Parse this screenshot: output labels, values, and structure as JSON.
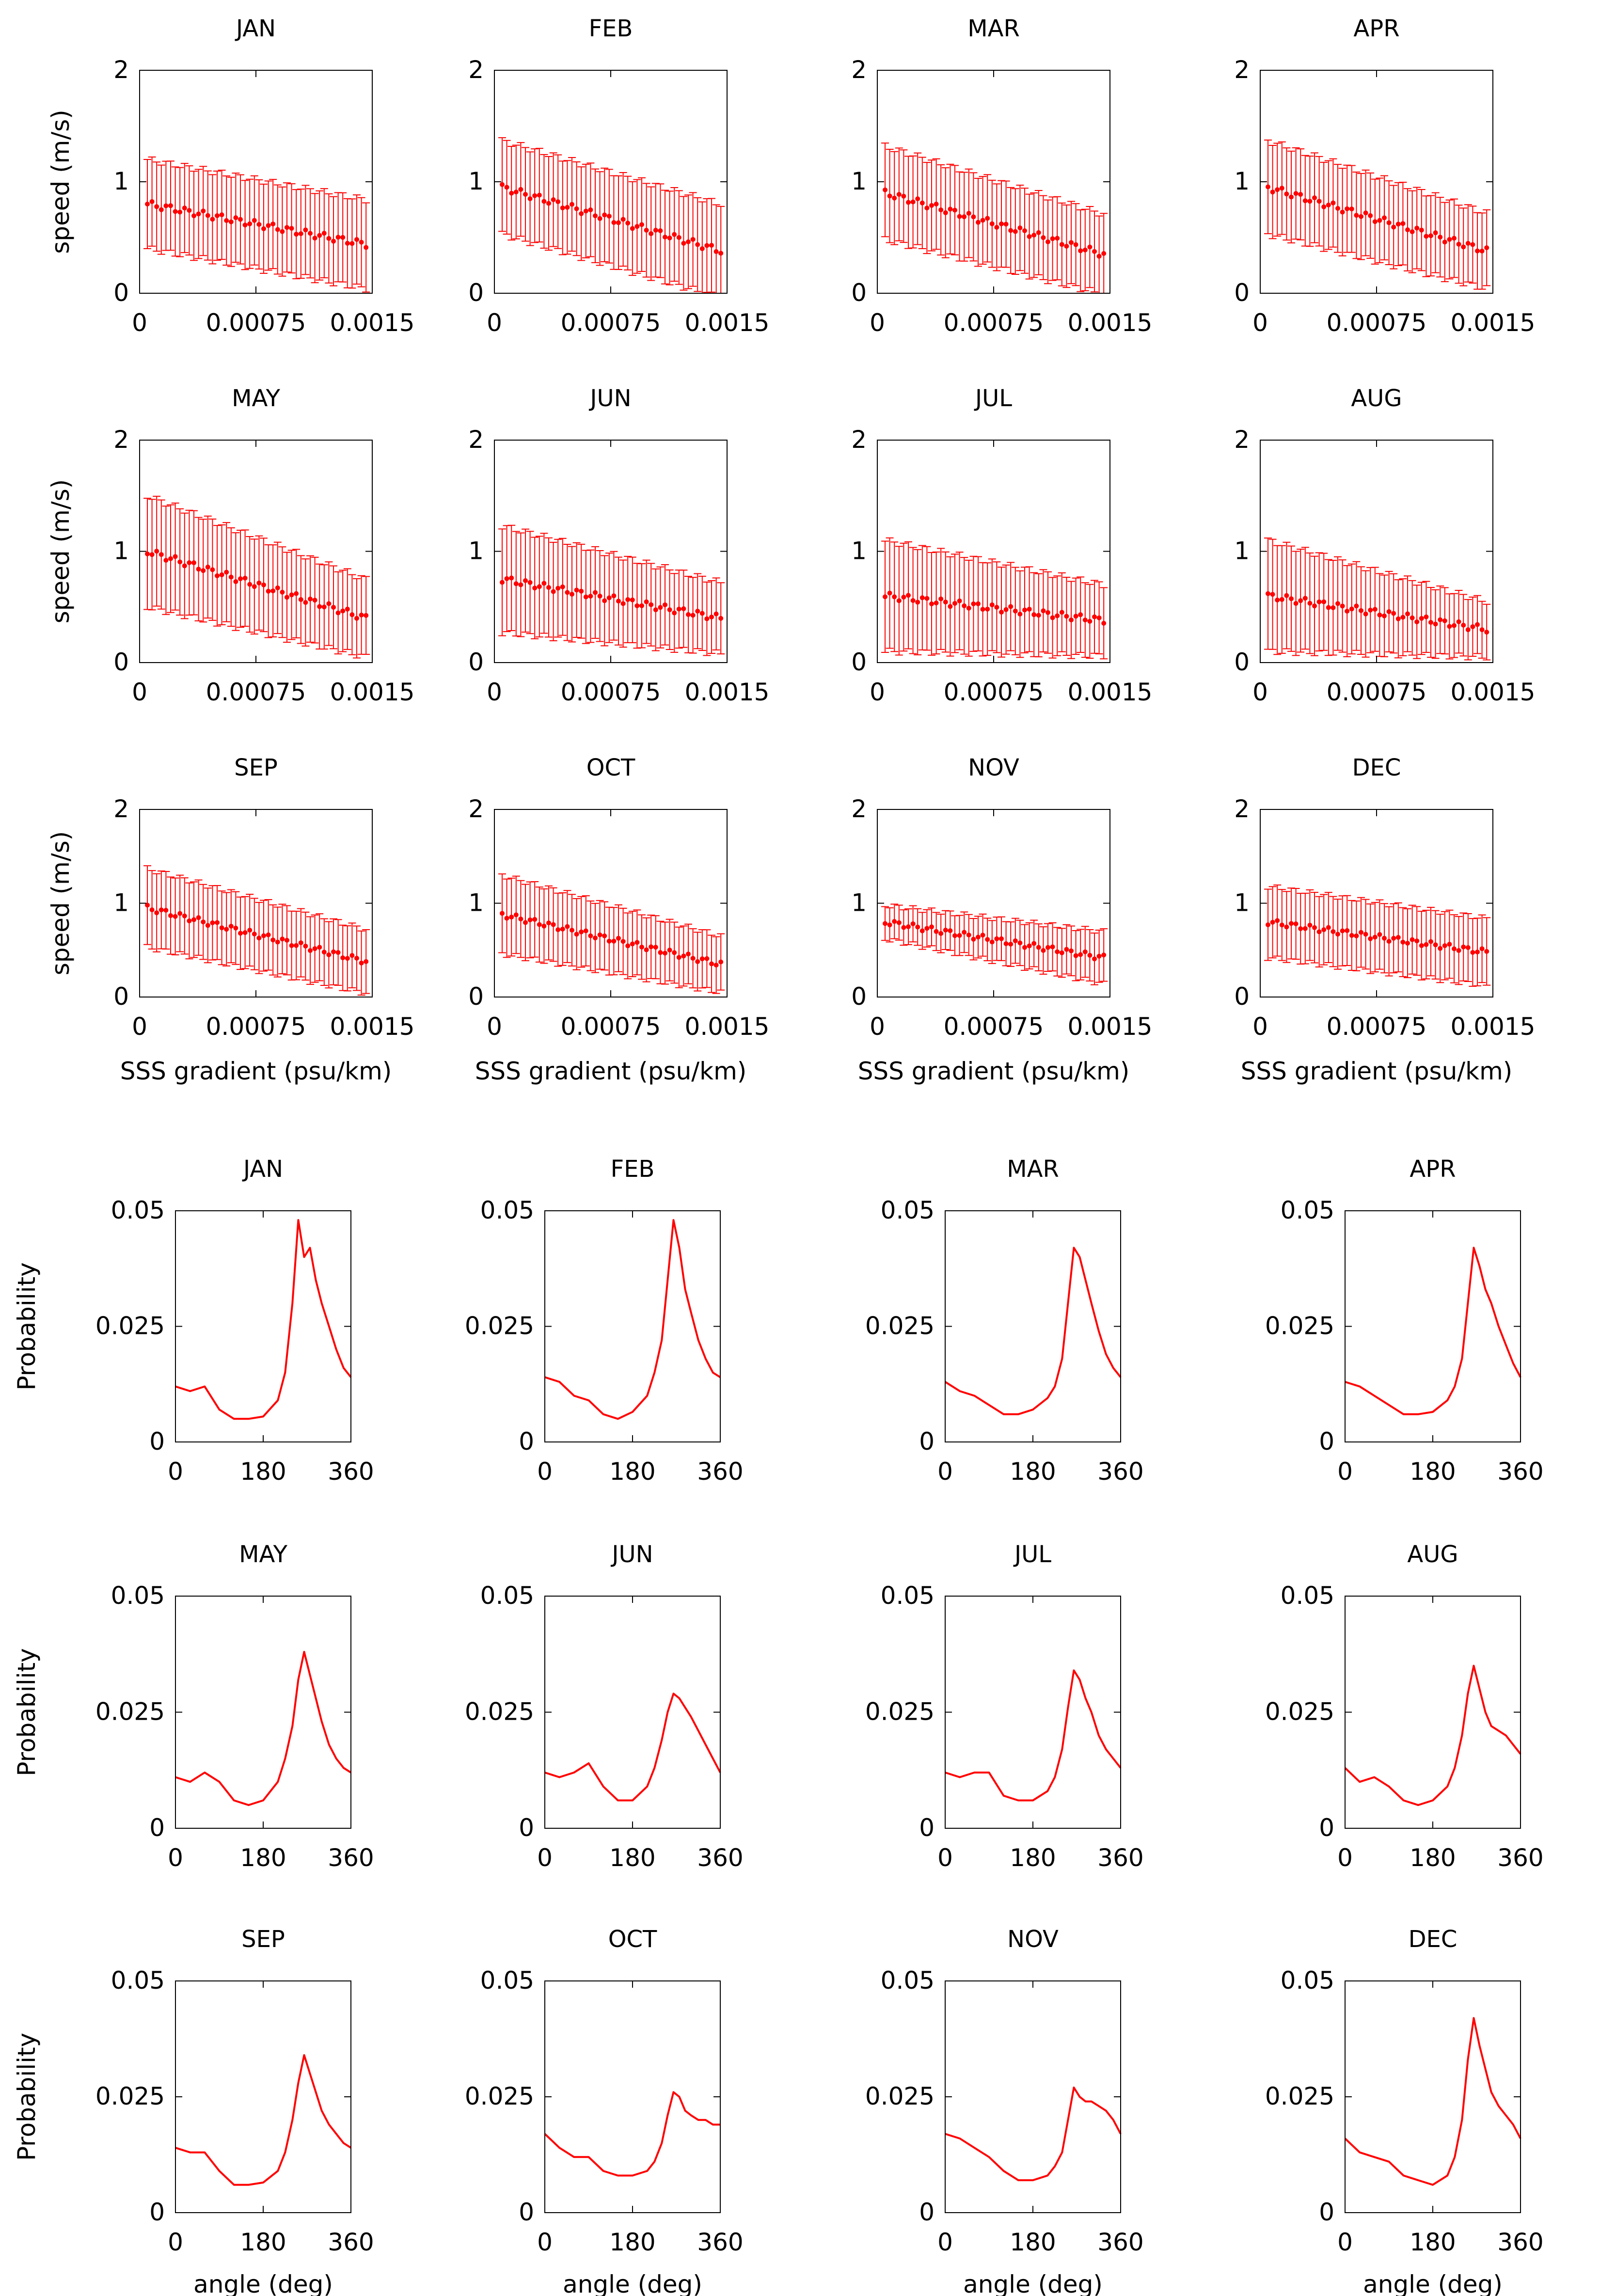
{
  "colors": {
    "series": "#ff0000",
    "axis": "#000000",
    "background": "#ffffff"
  },
  "chart_data": [
    {
      "type": "scatter",
      "group": "speed_vs_gradient",
      "xlabel": "SSS gradient (psu/km)",
      "ylabel": "speed (m/s)",
      "xlim": [
        0,
        0.0015
      ],
      "ylim": [
        0,
        2
      ],
      "xticks": [
        "0",
        "0.00075",
        "0.0015"
      ],
      "yticks": [
        "0",
        "1",
        "2"
      ],
      "error_bars": true,
      "x": [
        5e-05,
        8e-05,
        0.00011,
        0.00014,
        0.00017,
        0.0002,
        0.00023,
        0.00026,
        0.00029,
        0.00032,
        0.00035,
        0.00038,
        0.00041,
        0.00044,
        0.00047,
        0.0005,
        0.00053,
        0.00056,
        0.00059,
        0.00062,
        0.00065,
        0.00068,
        0.00071,
        0.00074,
        0.00077,
        0.0008,
        0.00083,
        0.00086,
        0.00089,
        0.00092,
        0.00095,
        0.00098,
        0.00101,
        0.00104,
        0.00107,
        0.0011,
        0.00113,
        0.00116,
        0.00119,
        0.00122,
        0.00125,
        0.00128,
        0.00131,
        0.00134,
        0.00137,
        0.0014,
        0.00143,
        0.00146
      ],
      "panels": [
        {
          "title": "JAN",
          "mean_start": 0.8,
          "mean_end": 0.44,
          "spread_start": 0.4,
          "spread_end": 0.4
        },
        {
          "title": "FEB",
          "mean_start": 0.95,
          "mean_end": 0.38,
          "spread_start": 0.42,
          "spread_end": 0.42
        },
        {
          "title": "MAR",
          "mean_start": 0.9,
          "mean_end": 0.35,
          "spread_start": 0.42,
          "spread_end": 0.36
        },
        {
          "title": "APR",
          "mean_start": 0.95,
          "mean_end": 0.38,
          "spread_start": 0.42,
          "spread_end": 0.34
        },
        {
          "title": "MAY",
          "mean_start": 1.0,
          "mean_end": 0.4,
          "spread_start": 0.5,
          "spread_end": 0.35
        },
        {
          "title": "JUN",
          "mean_start": 0.75,
          "mean_end": 0.4,
          "spread_start": 0.48,
          "spread_end": 0.32
        },
        {
          "title": "JUL",
          "mean_start": 0.6,
          "mean_end": 0.38,
          "spread_start": 0.5,
          "spread_end": 0.32
        },
        {
          "title": "AUG",
          "mean_start": 0.6,
          "mean_end": 0.3,
          "spread_start": 0.5,
          "spread_end": 0.25
        },
        {
          "title": "SEP",
          "mean_start": 0.95,
          "mean_end": 0.38,
          "spread_start": 0.42,
          "spread_end": 0.34
        },
        {
          "title": "OCT",
          "mean_start": 0.88,
          "mean_end": 0.35,
          "spread_start": 0.42,
          "spread_end": 0.3
        },
        {
          "title": "NOV",
          "mean_start": 0.8,
          "mean_end": 0.42,
          "spread_start": 0.18,
          "spread_end": 0.28
        },
        {
          "title": "DEC",
          "mean_start": 0.8,
          "mean_end": 0.48,
          "spread_start": 0.38,
          "spread_end": 0.36
        }
      ]
    },
    {
      "type": "line",
      "group": "angle_distribution",
      "xlabel": "angle (deg)",
      "ylabel": "Probability",
      "xlim": [
        0,
        360
      ],
      "ylim": [
        0,
        0.05
      ],
      "xticks": [
        "0",
        "180",
        "360"
      ],
      "yticks": [
        "0",
        "0.025",
        "0.05"
      ],
      "x": [
        0,
        30,
        60,
        90,
        120,
        150,
        180,
        210,
        225,
        240,
        252,
        264,
        276,
        288,
        300,
        315,
        330,
        345,
        360
      ],
      "series": [
        {
          "name": "JAN",
          "values": [
            0.012,
            0.011,
            0.012,
            0.007,
            0.005,
            0.005,
            0.0055,
            0.009,
            0.015,
            0.03,
            0.048,
            0.04,
            0.042,
            0.035,
            0.03,
            0.025,
            0.02,
            0.016,
            0.014
          ]
        },
        {
          "name": "FEB",
          "values": [
            0.014,
            0.013,
            0.01,
            0.009,
            0.006,
            0.005,
            0.0065,
            0.01,
            0.015,
            0.022,
            0.035,
            0.048,
            0.042,
            0.033,
            0.028,
            0.022,
            0.018,
            0.015,
            0.014
          ]
        },
        {
          "name": "MAR",
          "values": [
            0.013,
            0.011,
            0.01,
            0.008,
            0.006,
            0.006,
            0.007,
            0.0095,
            0.012,
            0.018,
            0.03,
            0.042,
            0.04,
            0.035,
            0.03,
            0.024,
            0.019,
            0.016,
            0.014
          ]
        },
        {
          "name": "APR",
          "values": [
            0.013,
            0.012,
            0.01,
            0.008,
            0.006,
            0.006,
            0.0065,
            0.009,
            0.012,
            0.018,
            0.03,
            0.042,
            0.038,
            0.033,
            0.03,
            0.025,
            0.021,
            0.017,
            0.014
          ]
        },
        {
          "name": "MAY",
          "values": [
            0.011,
            0.01,
            0.012,
            0.01,
            0.006,
            0.005,
            0.006,
            0.01,
            0.015,
            0.022,
            0.032,
            0.038,
            0.033,
            0.028,
            0.023,
            0.018,
            0.015,
            0.013,
            0.012
          ]
        },
        {
          "name": "JUN",
          "values": [
            0.012,
            0.011,
            0.012,
            0.014,
            0.009,
            0.006,
            0.006,
            0.009,
            0.013,
            0.019,
            0.025,
            0.029,
            0.028,
            0.026,
            0.024,
            0.021,
            0.018,
            0.015,
            0.012
          ]
        },
        {
          "name": "JUL",
          "values": [
            0.012,
            0.011,
            0.012,
            0.012,
            0.007,
            0.006,
            0.006,
            0.008,
            0.011,
            0.017,
            0.026,
            0.034,
            0.032,
            0.028,
            0.025,
            0.02,
            0.017,
            0.015,
            0.013
          ]
        },
        {
          "name": "AUG",
          "values": [
            0.013,
            0.01,
            0.011,
            0.009,
            0.006,
            0.005,
            0.006,
            0.009,
            0.013,
            0.02,
            0.029,
            0.035,
            0.03,
            0.025,
            0.022,
            0.021,
            0.02,
            0.018,
            0.016
          ]
        },
        {
          "name": "SEP",
          "values": [
            0.014,
            0.013,
            0.013,
            0.009,
            0.006,
            0.006,
            0.0065,
            0.009,
            0.013,
            0.02,
            0.028,
            0.034,
            0.03,
            0.026,
            0.022,
            0.019,
            0.017,
            0.015,
            0.014
          ]
        },
        {
          "name": "OCT",
          "values": [
            0.017,
            0.014,
            0.012,
            0.012,
            0.009,
            0.008,
            0.008,
            0.009,
            0.011,
            0.015,
            0.021,
            0.026,
            0.025,
            0.022,
            0.021,
            0.02,
            0.02,
            0.019,
            0.019
          ]
        },
        {
          "name": "NOV",
          "values": [
            0.017,
            0.016,
            0.014,
            0.012,
            0.009,
            0.007,
            0.007,
            0.008,
            0.01,
            0.013,
            0.02,
            0.027,
            0.025,
            0.024,
            0.024,
            0.023,
            0.022,
            0.02,
            0.017
          ]
        },
        {
          "name": "DEC",
          "values": [
            0.016,
            0.013,
            0.012,
            0.011,
            0.008,
            0.007,
            0.006,
            0.008,
            0.012,
            0.02,
            0.033,
            0.042,
            0.036,
            0.031,
            0.026,
            0.023,
            0.021,
            0.019,
            0.016
          ]
        }
      ]
    }
  ]
}
